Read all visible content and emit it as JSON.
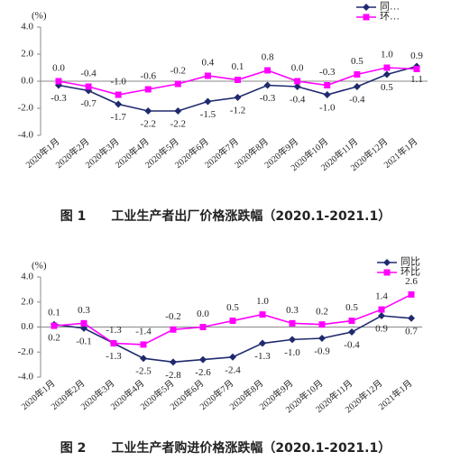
{
  "chart_data": [
    {
      "type": "line",
      "unit": "(%)",
      "caption": "图 1　　工业生产者出厂价格涨跌幅（2020.1-2021.1）",
      "categories": [
        "2020年1月",
        "2020年2月",
        "2020年3月",
        "2020年4月",
        "2020年5月",
        "2020年6月",
        "2020年7月",
        "2020年8月",
        "2020年9月",
        "2020年10月",
        "2020年11月",
        "2020年12月",
        "2021年1月"
      ],
      "series": [
        {
          "name": "同…",
          "color": "#1f2a6e",
          "marker": "diamond",
          "values": [
            -0.3,
            -0.7,
            -1.7,
            -2.2,
            -2.2,
            -1.5,
            -1.2,
            -0.3,
            -0.4,
            -1.0,
            -0.4,
            0.5,
            1.1
          ],
          "value_labels": [
            "-0.3",
            "-0.7",
            "-1.7",
            "-2.2",
            "-2.2",
            "-1.5",
            "-1.2",
            "-0.3",
            "-0.4",
            "-1.0",
            "-0.4",
            "0.5",
            "1.1"
          ]
        },
        {
          "name": "环…",
          "color": "#ff00ff",
          "marker": "square",
          "values": [
            0.0,
            -0.4,
            -1.0,
            -0.6,
            -0.2,
            0.4,
            0.1,
            0.8,
            0.0,
            -0.3,
            0.5,
            1.0,
            0.9
          ],
          "value_labels": [
            "0.0",
            "-0.4",
            "-1.0",
            "-0.6",
            "-0.2",
            "0.4",
            "0.1",
            "0.8",
            "0.0",
            "-0.3",
            "0.5",
            "1.0",
            "0.9"
          ]
        }
      ],
      "ylim": [
        -4,
        4
      ],
      "yticks": [
        {
          "value": 4,
          "label": "4.0"
        },
        {
          "value": 2,
          "label": "2.0"
        },
        {
          "value": 0,
          "label": "0.0"
        },
        {
          "value": -2,
          "label": "-2.0"
        },
        {
          "value": -4,
          "label": "-4.0"
        }
      ],
      "legend": "upper right"
    },
    {
      "type": "line",
      "unit": "(%)",
      "caption": "图 2　　工业生产者购进价格涨跌幅（2020.1-2021.1）",
      "categories": [
        "2020年1月",
        "2020年2月",
        "2020年3月",
        "2020年4月",
        "2020年5月",
        "2020年6月",
        "2020年7月",
        "2020年8月",
        "2020年9月",
        "2020年10月",
        "2020年11月",
        "2020年12月",
        "2021年1月"
      ],
      "series": [
        {
          "name": "同比",
          "color": "#1f2a6e",
          "marker": "diamond",
          "values": [
            0.2,
            -0.1,
            -1.3,
            -2.5,
            -2.8,
            -2.6,
            -2.4,
            -1.3,
            -1.0,
            -0.9,
            -0.4,
            0.9,
            0.7
          ],
          "value_labels": [
            "0.2",
            "-0.1",
            "-1.3",
            "-2.5",
            "-2.8",
            "-2.6",
            "-2.4",
            "-1.3",
            "-1.0",
            "-0.9",
            "-0.4",
            "0.9",
            "0.7"
          ]
        },
        {
          "name": "环比",
          "color": "#ff00ff",
          "marker": "square",
          "values": [
            0.1,
            0.3,
            -1.3,
            -1.4,
            -0.2,
            0.0,
            0.5,
            1.0,
            0.3,
            0.2,
            0.5,
            1.4,
            2.6
          ],
          "value_labels": [
            "0.1",
            "0.3",
            "-1.3",
            "-1.4",
            "-0.2",
            "0.0",
            "0.5",
            "1.0",
            "0.3",
            "0.2",
            "0.5",
            "1.4",
            "2.6"
          ]
        }
      ],
      "ylim": [
        -4,
        4
      ],
      "yticks": [
        {
          "value": 4,
          "label": "4.0"
        },
        {
          "value": 2,
          "label": "2.0"
        },
        {
          "value": 0,
          "label": "0.0"
        },
        {
          "value": -2,
          "label": "-2.0"
        },
        {
          "value": -4,
          "label": "-4.0"
        }
      ],
      "legend": "upper right"
    }
  ]
}
